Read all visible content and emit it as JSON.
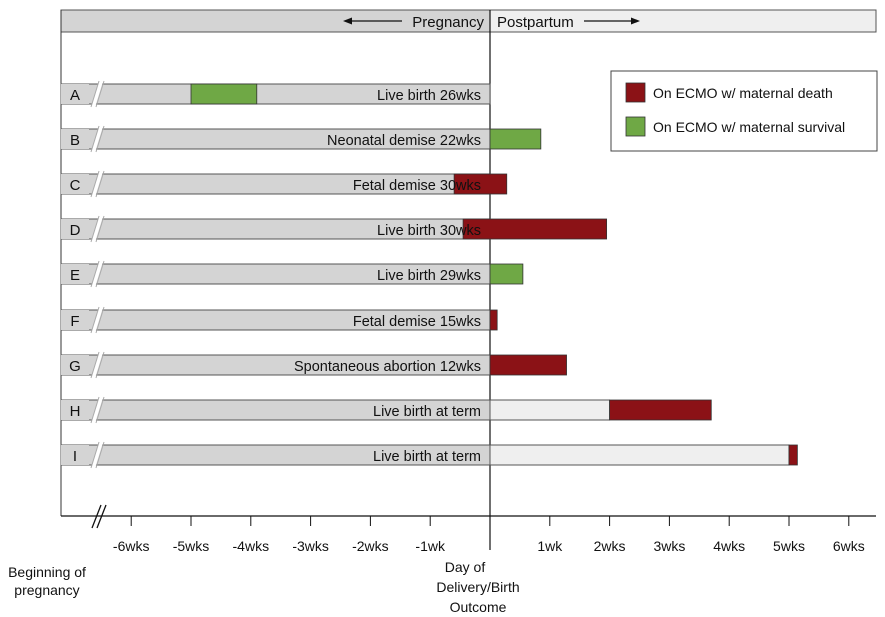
{
  "chart_data": {
    "type": "bar",
    "orientation": "horizontal-timeline",
    "header": {
      "pregnancy": "Pregnancy",
      "postpartum": "Postpartum"
    },
    "x_axis": {
      "unit": "weeks relative to delivery",
      "range": [
        -7,
        6.3
      ],
      "ticks": [
        {
          "v": -6,
          "label": "-6wks"
        },
        {
          "v": -5,
          "label": "-5wks"
        },
        {
          "v": -4,
          "label": "-4wks"
        },
        {
          "v": -3,
          "label": "-3wks"
        },
        {
          "v": -2,
          "label": "-2wks"
        },
        {
          "v": -1,
          "label": "-1wk"
        },
        {
          "v": 1,
          "label": "1wk"
        },
        {
          "v": 2,
          "label": "2wks"
        },
        {
          "v": 3,
          "label": "3wks"
        },
        {
          "v": 4,
          "label": "4wks"
        },
        {
          "v": 5,
          "label": "5wks"
        },
        {
          "v": 6,
          "label": "6wks"
        }
      ],
      "left_label": [
        "Beginning of",
        "pregnancy"
      ],
      "zero_label": [
        "Day of",
        "Delivery/Birth",
        "Outcome"
      ]
    },
    "legend": {
      "placement": "top-right",
      "items": [
        {
          "key": "death",
          "label": "On ECMO w/ maternal death",
          "color": "#8b1216"
        },
        {
          "key": "survival",
          "label": "On ECMO w/ maternal survival",
          "color": "#6fa845"
        }
      ]
    },
    "colors": {
      "pregnancy_bar": "#d4d4d4",
      "postpartum_bar": "#efefef",
      "death": "#8b1216",
      "survival": "#6fa845"
    },
    "cases": [
      {
        "id": "A",
        "outcome": "Live birth 26wks",
        "postpartum_until": null,
        "ecmo": [
          {
            "start": -5,
            "end": -3.9,
            "type": "survival"
          }
        ]
      },
      {
        "id": "B",
        "outcome": "Neonatal demise 22wks",
        "postpartum_until": null,
        "ecmo": [
          {
            "start": 0,
            "end": 0.85,
            "type": "survival"
          }
        ]
      },
      {
        "id": "C",
        "outcome": "Fetal demise 30wks",
        "postpartum_until": null,
        "ecmo": [
          {
            "start": -0.6,
            "end": 0.28,
            "type": "death"
          }
        ]
      },
      {
        "id": "D",
        "outcome": "Live birth 30wks",
        "postpartum_until": null,
        "ecmo": [
          {
            "start": -0.45,
            "end": 1.95,
            "type": "death"
          }
        ]
      },
      {
        "id": "E",
        "outcome": "Live birth 29wks",
        "postpartum_until": null,
        "ecmo": [
          {
            "start": 0,
            "end": 0.55,
            "type": "survival"
          }
        ]
      },
      {
        "id": "F",
        "outcome": "Fetal demise 15wks",
        "postpartum_until": null,
        "ecmo": [
          {
            "start": 0,
            "end": 0.12,
            "type": "death"
          }
        ]
      },
      {
        "id": "G",
        "outcome": "Spontaneous abortion 12wks",
        "postpartum_until": null,
        "ecmo": [
          {
            "start": 0,
            "end": 1.28,
            "type": "death"
          }
        ]
      },
      {
        "id": "H",
        "outcome": "Live birth at term",
        "postpartum_until": 2.0,
        "ecmo": [
          {
            "start": 2.0,
            "end": 3.7,
            "type": "death"
          }
        ]
      },
      {
        "id": "I",
        "outcome": "Live birth at term",
        "postpartum_until": 5.0,
        "ecmo": [
          {
            "start": 5.0,
            "end": 5.14,
            "type": "death"
          }
        ]
      }
    ]
  }
}
